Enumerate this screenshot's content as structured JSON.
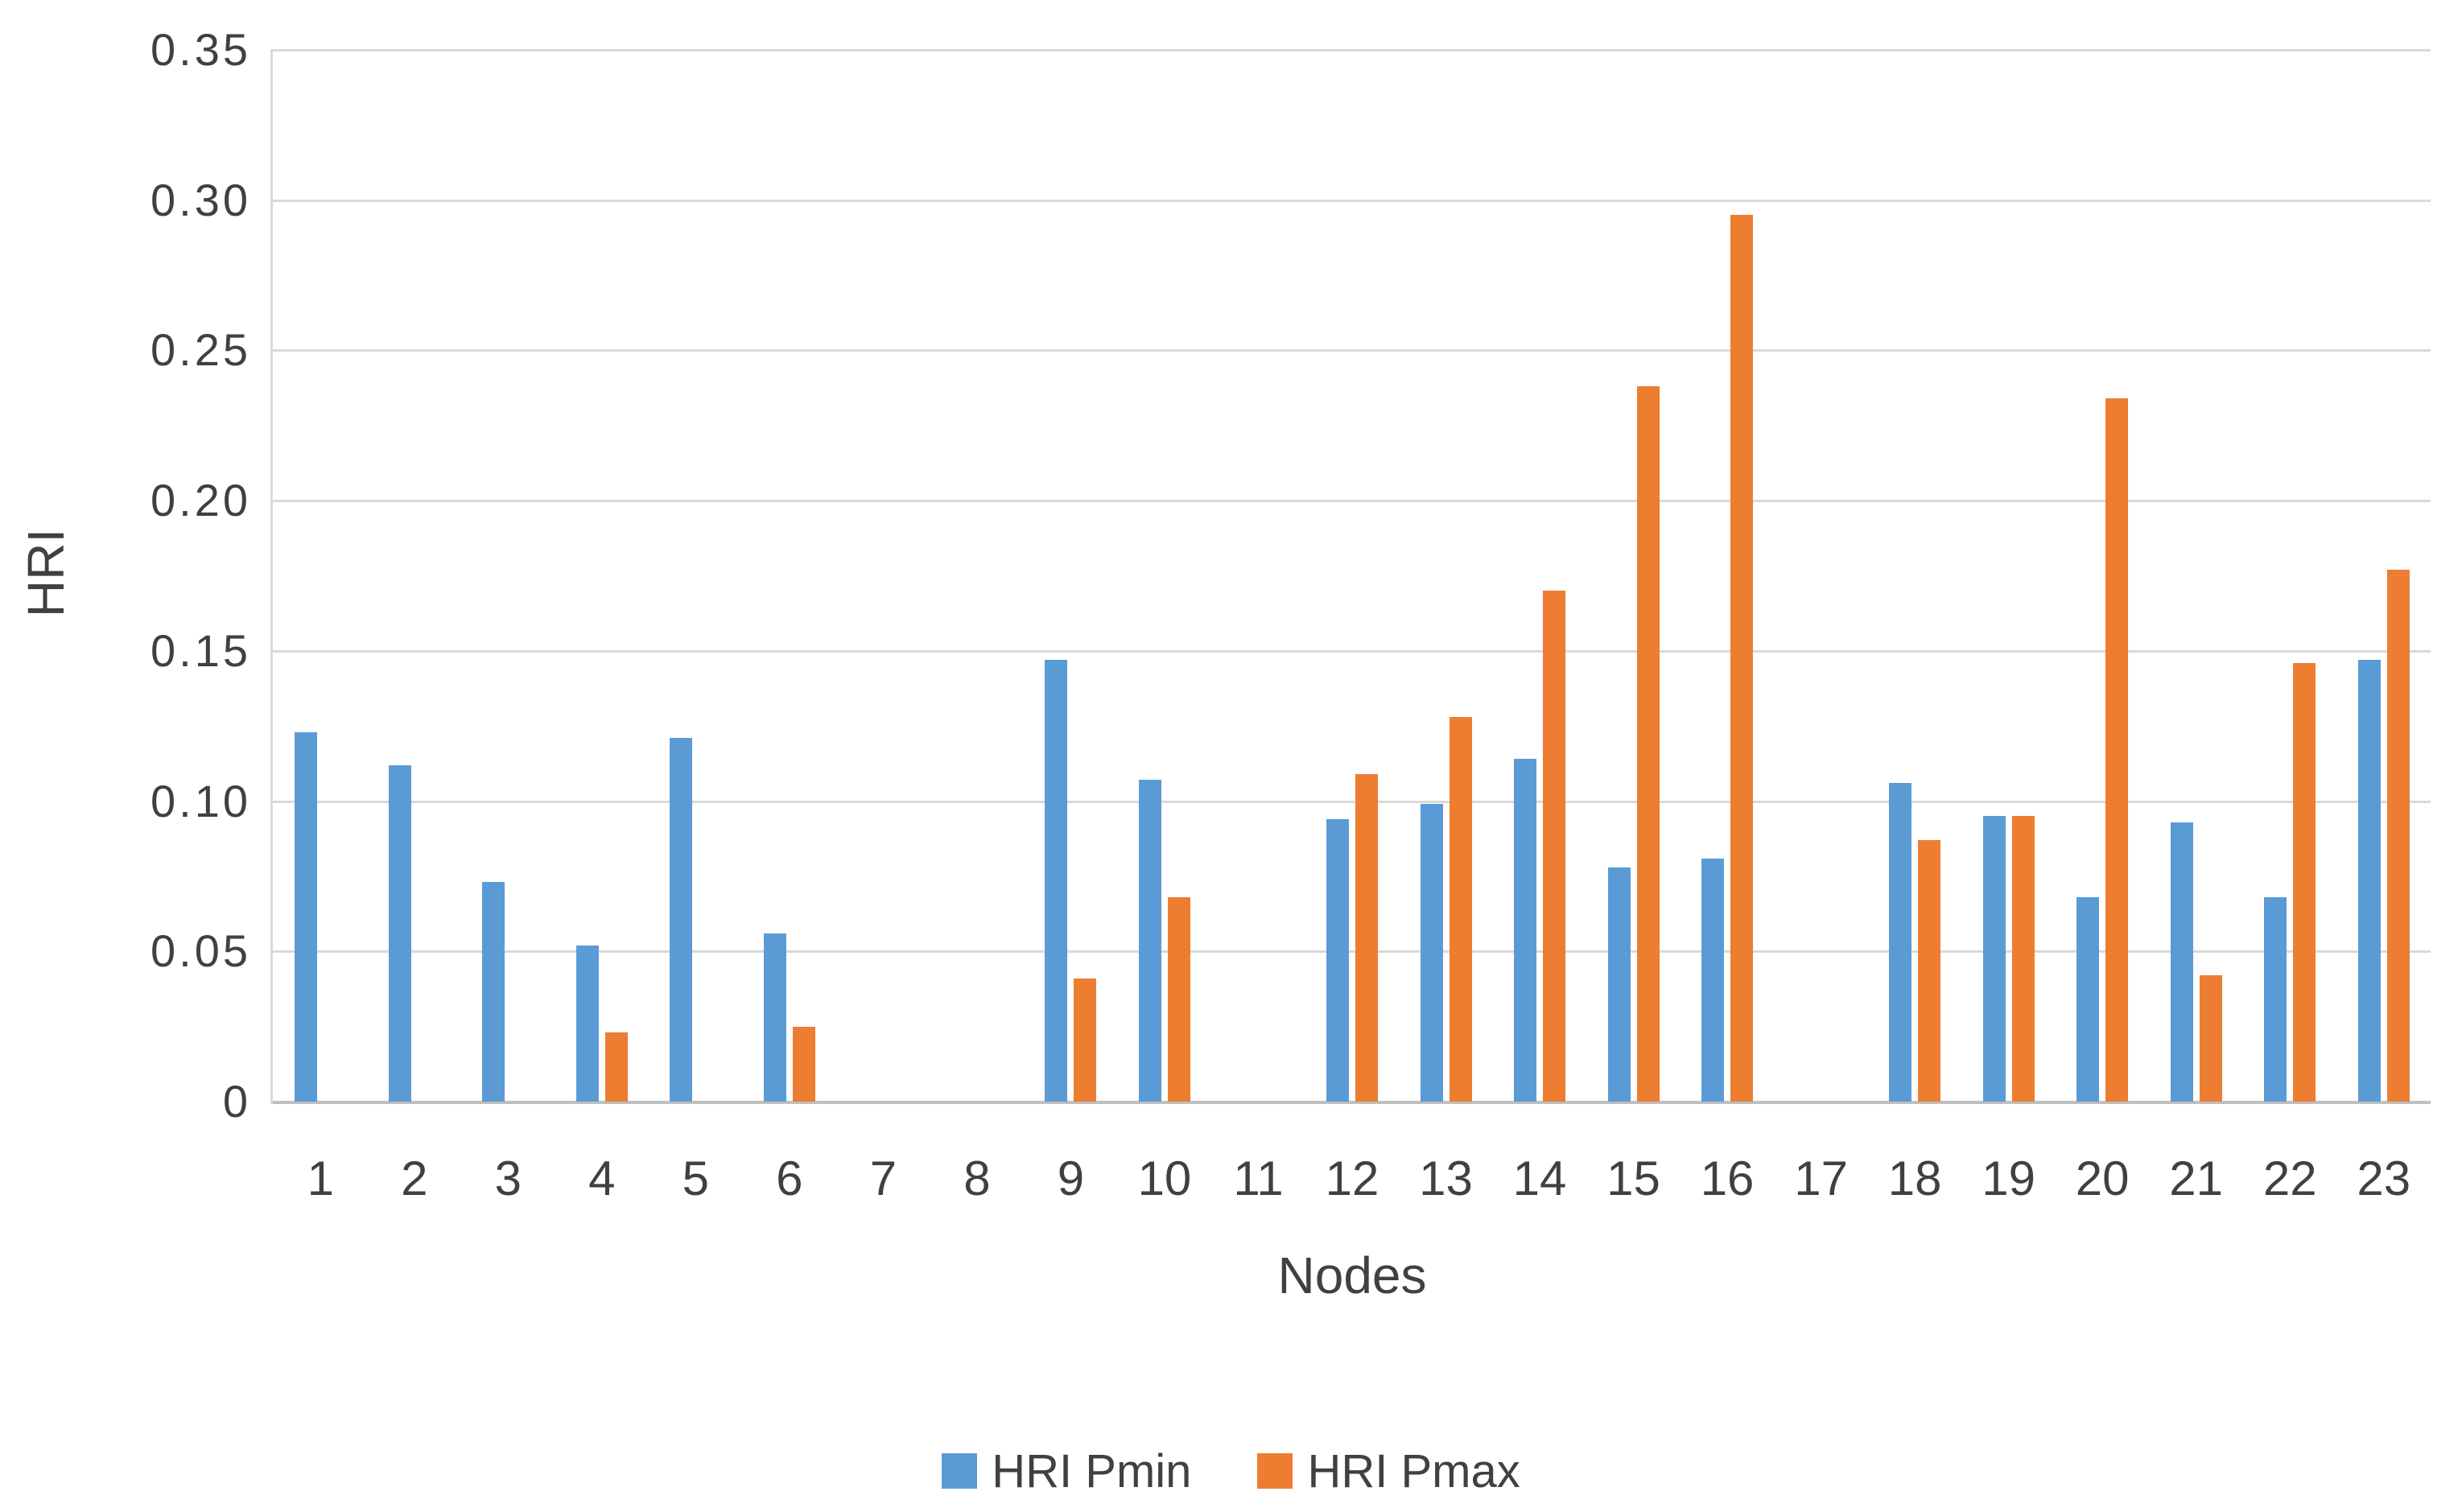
{
  "chart_data": {
    "type": "bar",
    "title": "",
    "xlabel": "Nodes",
    "ylabel": "HRI",
    "ylim": [
      0,
      0.35
    ],
    "ytick_step": 0.05,
    "yticks": [
      0,
      0.05,
      0.1,
      0.15,
      0.2,
      0.25,
      0.3,
      0.35
    ],
    "ytick_labels": [
      "0",
      "0.05",
      "0.10",
      "0.15",
      "0.20",
      "0.25",
      "0.30",
      "0.35"
    ],
    "grid": true,
    "grid_color": "#D9D9D9",
    "axis_line_color": "#BFBFBF",
    "text_color": "#404040",
    "legend_position": "bottom",
    "categories": [
      "1",
      "2",
      "3",
      "4",
      "5",
      "6",
      "7",
      "8",
      "9",
      "10",
      "11",
      "12",
      "13",
      "14",
      "15",
      "16",
      "17",
      "18",
      "19",
      "20",
      "21",
      "22",
      "23"
    ],
    "series": [
      {
        "name": "HRI Pmin",
        "color": "#5B9BD5",
        "values": [
          0.123,
          0.112,
          0.073,
          0.052,
          0.121,
          0.056,
          0,
          0,
          0.147,
          0.107,
          0,
          0.094,
          0.099,
          0.114,
          0.078,
          0.081,
          0,
          0.106,
          0.095,
          0.068,
          0.093,
          0.068,
          0.147
        ]
      },
      {
        "name": "HRI Pmax",
        "color": "#ED7D31",
        "values": [
          0,
          0,
          0,
          0.023,
          0,
          0.025,
          0,
          0,
          0.041,
          0.068,
          0,
          0.109,
          0.128,
          0.17,
          0.238,
          0.295,
          0,
          0.087,
          0.095,
          0.234,
          0.042,
          0.146,
          0.177
        ]
      }
    ]
  }
}
